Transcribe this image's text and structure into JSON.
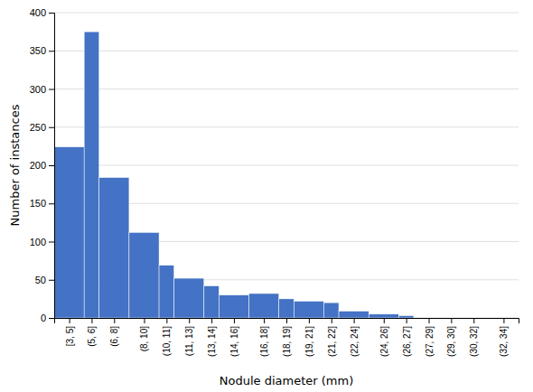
{
  "chart_data": {
    "type": "histogram",
    "xlabel": "Nodule diameter (mm)",
    "ylabel": "Number of instances",
    "bins": [
      3,
      5,
      6,
      8,
      10,
      11,
      13,
      14,
      16,
      18,
      19,
      21,
      22,
      24,
      26,
      27,
      29,
      30,
      32,
      34
    ],
    "values": [
      224,
      375,
      184,
      112,
      69,
      52,
      42,
      30,
      32,
      25,
      22,
      20,
      9,
      5,
      3,
      0,
      0,
      0,
      0
    ],
    "color": "#4472C4",
    "xlim": [
      3,
      34
    ],
    "xticks": [
      {
        "value": 4,
        "label": "[3, 5]"
      },
      {
        "value": 5.5,
        "label": "(5, 6]"
      },
      {
        "value": 7,
        "label": "(6, 8]"
      },
      {
        "value": 9,
        "label": "(8, 10]"
      },
      {
        "value": 10.5,
        "label": "(10, 11]"
      },
      {
        "value": 12,
        "label": "(11, 13]"
      },
      {
        "value": 13.5,
        "label": "(13, 14]"
      },
      {
        "value": 15,
        "label": "(14, 16]"
      },
      {
        "value": 17,
        "label": "(16, 18]"
      },
      {
        "value": 18.5,
        "label": "(18, 19]"
      },
      {
        "value": 20,
        "label": "(19, 21]"
      },
      {
        "value": 21.5,
        "label": "(21, 22]"
      },
      {
        "value": 23,
        "label": "(22, 24]"
      },
      {
        "value": 25,
        "label": "(24, 26]"
      },
      {
        "value": 26.5,
        "label": "(26, 27]"
      },
      {
        "value": 28,
        "label": "(27, 29]"
      },
      {
        "value": 29.5,
        "label": "(29, 30]"
      },
      {
        "value": 31,
        "label": "(30, 32]"
      },
      {
        "value": 33,
        "label": "(32, 34]"
      }
    ],
    "ylim": [
      0,
      400
    ],
    "yticks": [
      0,
      50,
      100,
      150,
      200,
      250,
      300,
      350,
      400
    ],
    "grid": true
  }
}
